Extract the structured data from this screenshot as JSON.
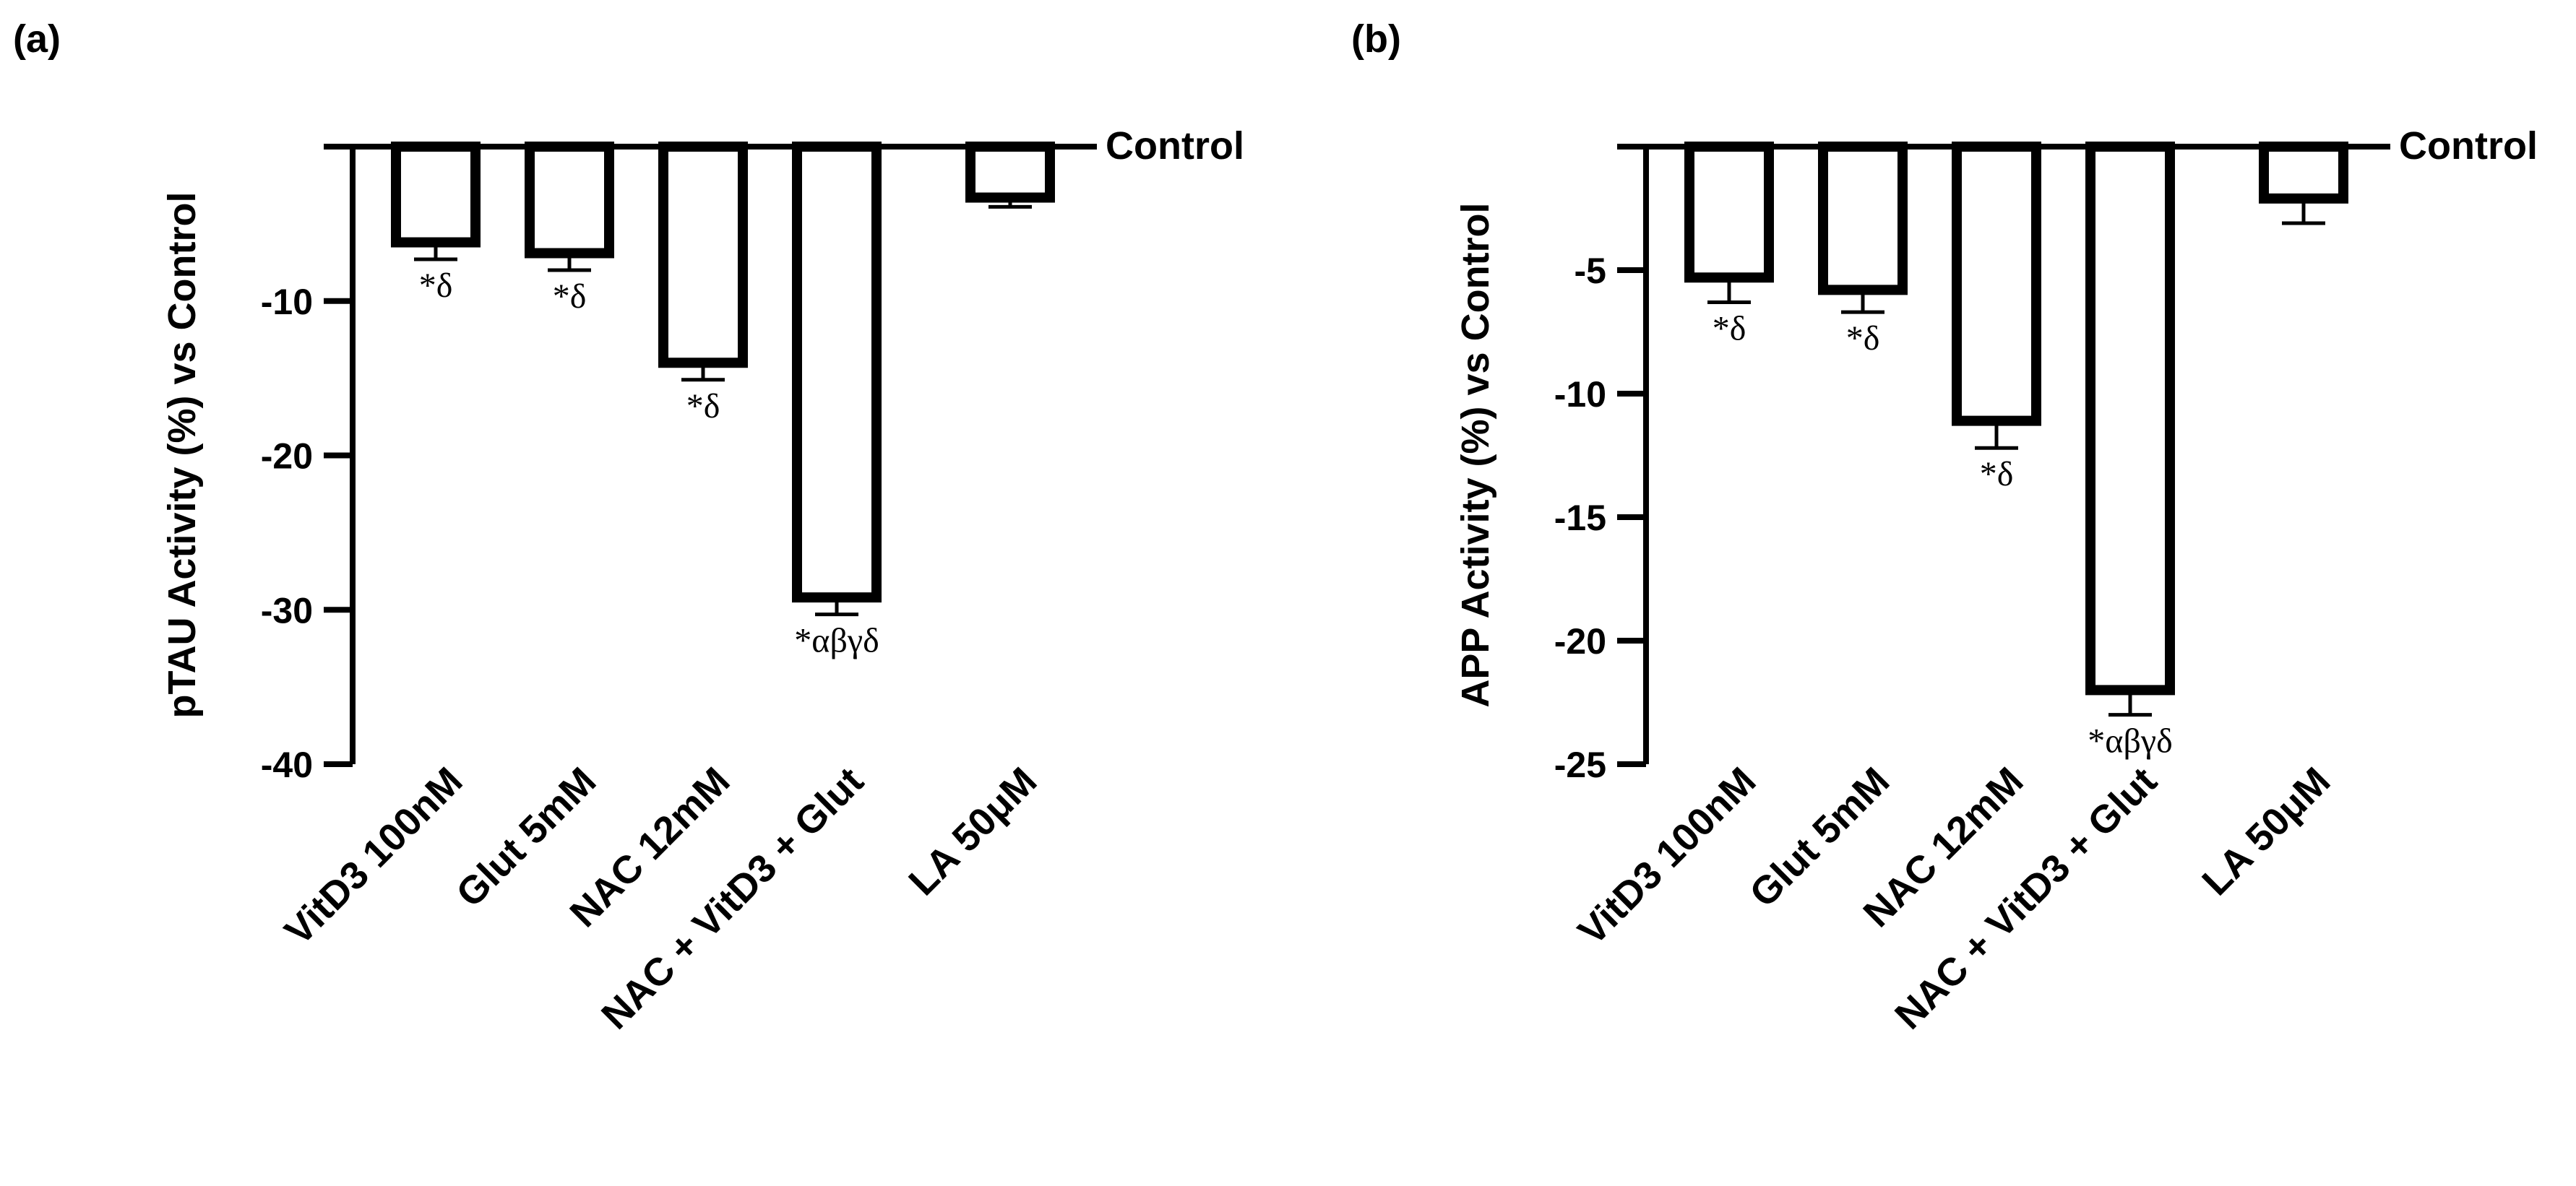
{
  "chart_data": [
    {
      "type": "bar",
      "panel_label": "(a)",
      "title": "",
      "xlabel": "",
      "ylabel": "pTAU Activity (%) vs Control",
      "baseline_label": "Control",
      "ylim": [
        -40,
        0
      ],
      "yticks": [
        -10,
        -20,
        -30,
        -40
      ],
      "ytick_labels": [
        "-10",
        "-20",
        "-30",
        "-40"
      ],
      "categories": [
        "VitD3 100nM",
        "Glut 5mM",
        "NAC 12mM",
        "NAC + VitD3 + Glut",
        "LA 50μM"
      ],
      "values": [
        -6.2,
        -6.9,
        -14.0,
        -29.2,
        -3.3
      ],
      "errors": [
        1.1,
        1.1,
        1.1,
        1.1,
        0.6
      ],
      "significance": [
        "*δ",
        "*δ",
        "*δ",
        "*αβγδ",
        ""
      ],
      "grid": false,
      "legend": "none"
    },
    {
      "type": "bar",
      "panel_label": "(b)",
      "title": "",
      "xlabel": "",
      "ylabel": "APP Activity (%) vs Control",
      "baseline_label": "Control",
      "ylim": [
        -25,
        0
      ],
      "yticks": [
        -5,
        -10,
        -15,
        -20,
        -25
      ],
      "ytick_labels": [
        "-5",
        "-10",
        "-15",
        "-20",
        "-25"
      ],
      "categories": [
        "VitD3 100nM",
        "Glut 5mM",
        "NAC 12mM",
        "NAC + VitD3 + Glut",
        "LA 50μM"
      ],
      "values": [
        -5.3,
        -5.8,
        -11.1,
        -22.0,
        -2.1
      ],
      "errors": [
        1.0,
        0.9,
        1.1,
        1.0,
        1.0
      ],
      "significance": [
        "*δ",
        "*δ",
        "*δ",
        "*αβγδ",
        ""
      ],
      "grid": false,
      "legend": "none"
    }
  ]
}
